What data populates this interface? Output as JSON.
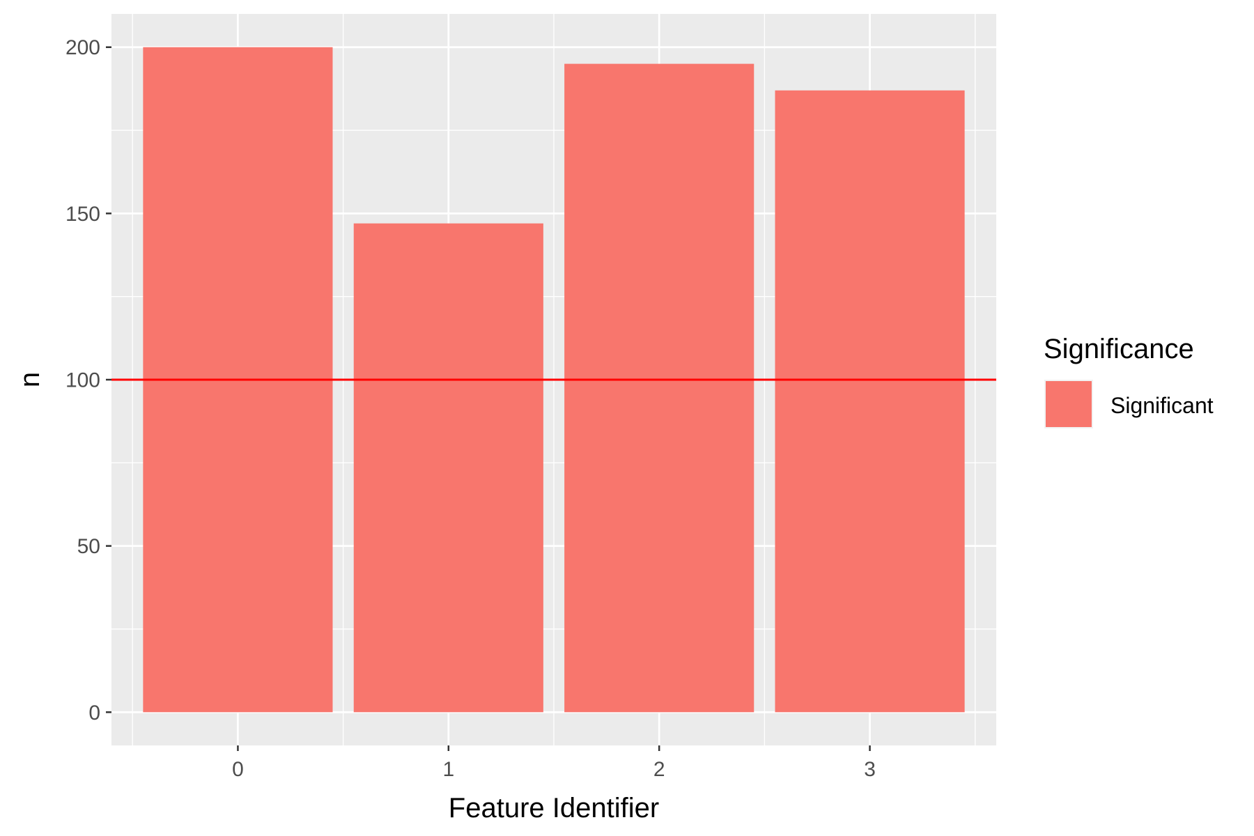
{
  "chart_data": {
    "type": "bar",
    "categories": [
      "0",
      "1",
      "2",
      "3"
    ],
    "series": [
      {
        "name": "Significant",
        "values": [
          200,
          147,
          195,
          187
        ]
      }
    ],
    "xlabel": "Feature Identifier",
    "ylabel": "n",
    "ylim": [
      -10,
      210
    ],
    "yticks": [
      0,
      50,
      100,
      150,
      200
    ],
    "y_tick_labels": [
      "0",
      "50",
      "100",
      "150",
      "200"
    ],
    "x_tick_labels": [
      "0",
      "1",
      "2",
      "3"
    ],
    "reference_line": {
      "y": 100,
      "color": "#ff0000"
    },
    "grid": true,
    "legend": {
      "title": "Significance",
      "placement": "right",
      "entries": [
        "Significant"
      ]
    },
    "colors": {
      "bar": "#f8766d",
      "panel_background": "#ebebeb",
      "grid": "#ffffff",
      "reference_line": "#ff0000"
    }
  }
}
